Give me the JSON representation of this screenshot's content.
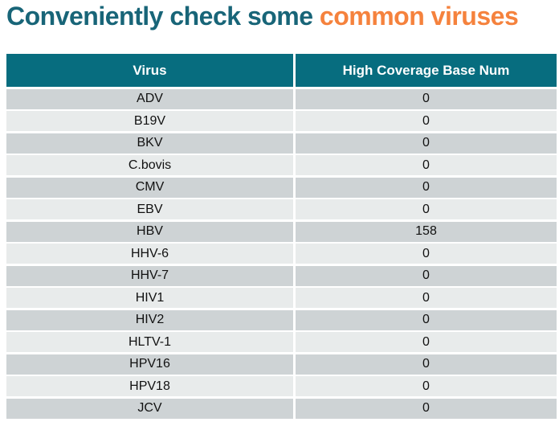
{
  "title": {
    "prefix": "Conveniently check some ",
    "highlight": "common viruses"
  },
  "colors": {
    "title_teal": "#186578",
    "title_orange": "#f5823d",
    "header_background": "#076d7f",
    "header_text": "#ffffff",
    "row_dark": "#ced3d5",
    "row_light": "#e8ebeb",
    "row_text": "#111111"
  },
  "table": {
    "columns": [
      "Virus",
      "High Coverage Base Num"
    ],
    "rows": [
      {
        "virus": "ADV",
        "value": "0"
      },
      {
        "virus": "B19V",
        "value": "0"
      },
      {
        "virus": "BKV",
        "value": "0"
      },
      {
        "virus": "C.bovis",
        "value": "0"
      },
      {
        "virus": "CMV",
        "value": "0"
      },
      {
        "virus": "EBV",
        "value": "0"
      },
      {
        "virus": "HBV",
        "value": "158"
      },
      {
        "virus": "HHV-6",
        "value": "0"
      },
      {
        "virus": "HHV-7",
        "value": "0"
      },
      {
        "virus": "HIV1",
        "value": "0"
      },
      {
        "virus": "HIV2",
        "value": "0"
      },
      {
        "virus": "HLTV-1",
        "value": "0"
      },
      {
        "virus": "HPV16",
        "value": "0"
      },
      {
        "virus": "HPV18",
        "value": "0"
      },
      {
        "virus": "JCV",
        "value": "0"
      }
    ]
  }
}
